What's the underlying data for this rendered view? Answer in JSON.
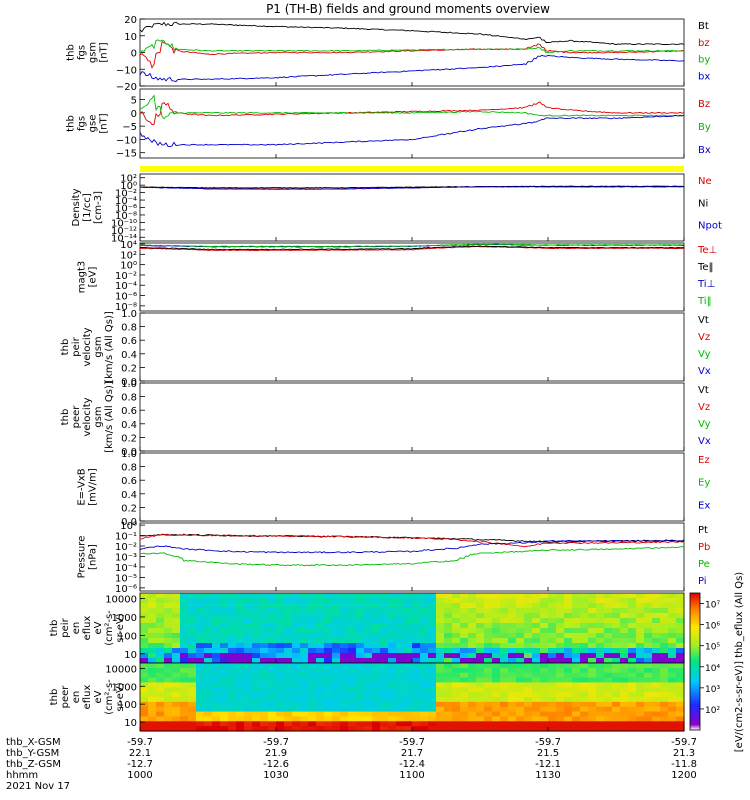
{
  "figure": {
    "title": "P1 (TH-B) fields and ground moments overview",
    "date": "2021 Nov 17"
  },
  "footer": {
    "labels": [
      "thb_X-GSM",
      "thb_Y-GSM",
      "thb_Z-GSM",
      "hhmm"
    ],
    "ticks": [
      {
        "time": "1000",
        "x": "-59.7",
        "y": "22.1",
        "z": "-12.7"
      },
      {
        "time": "1030",
        "x": "-59.7",
        "y": "21.9",
        "z": "-12.6"
      },
      {
        "time": "1100",
        "x": "-59.7",
        "y": "21.7",
        "z": "-12.4"
      },
      {
        "time": "1130",
        "x": "-59.7",
        "y": "21.5",
        "z": "-12.1"
      },
      {
        "time": "1200",
        "x": "-59.7",
        "y": "21.3",
        "z": "-11.8"
      }
    ]
  },
  "colorbar": {
    "label": "[eV/(cm2-s-sr-eV)] thb_eflux (All Qs)",
    "ticks": [
      "10²",
      "10³",
      "10⁴",
      "10⁵",
      "10⁶",
      "10⁷"
    ]
  },
  "chart_data": [
    {
      "type": "line",
      "id": "fgs_gsm",
      "ylabel": [
        "thb",
        "fgs",
        "gsm",
        "[nT]"
      ],
      "ylim": [
        -20,
        20
      ],
      "yticks": [
        "20",
        "10",
        "0",
        "−10",
        "−20"
      ],
      "legend": [
        {
          "text": "Bt",
          "color": "#000000"
        },
        {
          "text": "bz",
          "color": "#dd0000"
        },
        {
          "text": "by",
          "color": "#00bb00"
        },
        {
          "text": "bx",
          "color": "#0000cc"
        }
      ],
      "x": [
        1000,
        1003,
        1005,
        1008,
        1015,
        1030,
        1045,
        1100,
        1115,
        1125,
        1128,
        1130,
        1135,
        1145,
        1200
      ],
      "series": [
        {
          "name": "Bt",
          "color": "#000000",
          "values": [
            13,
            16,
            17,
            17,
            17,
            15.5,
            14.5,
            13,
            11,
            8,
            9,
            6,
            7,
            5,
            5
          ]
        },
        {
          "name": "bz",
          "color": "#dd0000",
          "values": [
            0,
            -8,
            7,
            1,
            -1,
            0,
            0,
            1,
            2,
            2,
            5,
            1,
            0,
            0,
            1
          ]
        },
        {
          "name": "by",
          "color": "#00bb00",
          "values": [
            0,
            4,
            8,
            2,
            1,
            1,
            1,
            1.5,
            2,
            2,
            3,
            0,
            1,
            1,
            1
          ]
        },
        {
          "name": "bx",
          "color": "#0000cc",
          "values": [
            -12,
            -15,
            -16,
            -16,
            -16,
            -15,
            -13,
            -11,
            -9,
            -7,
            -2,
            -2,
            -3,
            -4,
            -5
          ]
        }
      ]
    },
    {
      "type": "line",
      "id": "fgs_gse",
      "ylabel": [
        "thb",
        "fgs",
        "gse",
        "[nT]"
      ],
      "ylim": [
        -17,
        9
      ],
      "yticks": [
        "5",
        "0",
        "−5",
        "−10",
        "−15"
      ],
      "legend": [
        {
          "text": "Bz",
          "color": "#dd0000"
        },
        {
          "text": "By",
          "color": "#00bb00"
        },
        {
          "text": "Bx",
          "color": "#0000cc"
        }
      ],
      "x": [
        1000,
        1003,
        1005,
        1008,
        1015,
        1030,
        1045,
        1100,
        1115,
        1125,
        1128,
        1130,
        1135,
        1145,
        1200
      ],
      "series": [
        {
          "name": "Bz",
          "color": "#dd0000",
          "values": [
            0,
            -5,
            4,
            0,
            -1,
            -0.5,
            0,
            0.5,
            1,
            2,
            4,
            2,
            1,
            0,
            0
          ]
        },
        {
          "name": "By",
          "color": "#00bb00",
          "values": [
            1,
            6,
            -2,
            0,
            0,
            0,
            0,
            0,
            0.5,
            0,
            -1,
            -1,
            -1,
            -1,
            -1
          ]
        },
        {
          "name": "Bx",
          "color": "#0000cc",
          "values": [
            -8,
            -11,
            -12,
            -12,
            -12,
            -12,
            -11,
            -10,
            -6,
            -4,
            -3,
            -2,
            -2,
            -2,
            -1
          ]
        }
      ]
    },
    {
      "type": "line",
      "id": "density",
      "ylabel": [
        "Density",
        "[1/cc]",
        "[cm-3]"
      ],
      "yscale": "log",
      "yticks": [
        "10²",
        "10⁰",
        "10⁻²",
        "10⁻⁴",
        "10⁻⁶",
        "10⁻⁸",
        "10⁻¹⁰",
        "10⁻¹²",
        "10⁻¹⁴"
      ],
      "legend": [
        {
          "text": "Ne",
          "color": "#dd0000"
        },
        {
          "text": "Ni",
          "color": "#000000"
        },
        {
          "text": "Npot",
          "color": "#0000cc"
        }
      ],
      "x": [
        1000,
        1015,
        1030,
        1045,
        1100,
        1115,
        1130,
        1145,
        1200
      ],
      "series": [
        {
          "name": "Ne",
          "color": "#dd0000",
          "values": [
            0.3,
            0.12,
            0.1,
            0.1,
            0.2,
            0.4,
            0.4,
            0.4,
            0.4
          ]
        },
        {
          "name": "Ni",
          "color": "#000000",
          "values": [
            0.3,
            0.2,
            0.2,
            0.2,
            0.3,
            0.4,
            0.5,
            0.5,
            0.5
          ]
        },
        {
          "name": "Npot",
          "color": "#0000cc",
          "values": [
            0.25,
            0.1,
            0.08,
            0.09,
            0.18,
            0.35,
            0.35,
            0.35,
            0.35
          ]
        }
      ]
    },
    {
      "type": "line",
      "id": "temperature",
      "ylabel": [
        "magt3",
        "[eV]"
      ],
      "yscale": "log",
      "yticks": [
        "10⁴",
        "10²",
        "10⁰",
        "10⁻²",
        "10⁻⁴",
        "10⁻⁶",
        "10⁻⁸"
      ],
      "legend": [
        {
          "text": "Te⊥",
          "color": "#dd0000"
        },
        {
          "text": "Te‖",
          "color": "#000000"
        },
        {
          "text": "Ti⊥",
          "color": "#0000cc"
        },
        {
          "text": "Ti‖",
          "color": "#00bb00"
        }
      ],
      "x": [
        1000,
        1015,
        1030,
        1045,
        1100,
        1115,
        1130,
        1145,
        1200
      ],
      "series": [
        {
          "name": "Te⊥",
          "color": "#dd0000",
          "values": [
            1500,
            600,
            600,
            700,
            800,
            3000,
            1500,
            1500,
            1500
          ]
        },
        {
          "name": "Te‖",
          "color": "#000000",
          "values": [
            2000,
            900,
            900,
            1000,
            1200,
            4000,
            2000,
            2000,
            2000
          ]
        },
        {
          "name": "Ti⊥",
          "color": "#0000cc",
          "values": [
            5000,
            3000,
            3000,
            3000,
            3500,
            8000,
            6000,
            6000,
            6000
          ]
        },
        {
          "name": "Ti‖",
          "color": "#00bb00",
          "values": [
            6000,
            3500,
            3500,
            3500,
            4000,
            9000,
            7000,
            7000,
            7000
          ]
        }
      ]
    },
    {
      "type": "line",
      "id": "ion_velocity",
      "ylabel": [
        "thb",
        "peir",
        "velocity",
        "gsm",
        "[km/s (All Qs)]"
      ],
      "ylim": [
        0,
        1
      ],
      "yticks": [
        "1.0",
        "0.8",
        "0.6",
        "0.4",
        "0.2",
        "0.0"
      ],
      "legend": [
        {
          "text": "Vt",
          "color": "#000000"
        },
        {
          "text": "Vz",
          "color": "#dd0000"
        },
        {
          "text": "Vy",
          "color": "#00bb00"
        },
        {
          "text": "Vx",
          "color": "#0000cc"
        }
      ],
      "series": []
    },
    {
      "type": "line",
      "id": "electron_velocity",
      "ylabel": [
        "thb",
        "peer",
        "velocity",
        "gsm",
        "[km/s (All Qs)]"
      ],
      "ylim": [
        0,
        1
      ],
      "yticks": [
        "1.0",
        "0.8",
        "0.6",
        "0.4",
        "0.2",
        "0.0"
      ],
      "legend": [
        {
          "text": "Vt",
          "color": "#000000"
        },
        {
          "text": "Vz",
          "color": "#dd0000"
        },
        {
          "text": "Vy",
          "color": "#00bb00"
        },
        {
          "text": "Vx",
          "color": "#0000cc"
        }
      ],
      "series": []
    },
    {
      "type": "line",
      "id": "efield",
      "ylabel": [
        "E=-VxB",
        "[mV/m]"
      ],
      "ylim": [
        0,
        1
      ],
      "yticks": [
        "1.0",
        "0.8",
        "0.6",
        "0.4",
        "0.2",
        "0.0"
      ],
      "legend": [
        {
          "text": "Ez",
          "color": "#dd0000"
        },
        {
          "text": "Ey",
          "color": "#00bb00"
        },
        {
          "text": "Ex",
          "color": "#0000cc"
        }
      ],
      "series": []
    },
    {
      "type": "line",
      "id": "pressure",
      "ylabel": [
        "Pressure",
        "[nPa]"
      ],
      "yscale": "log",
      "yticks": [
        "10⁰",
        "10⁻¹",
        "10⁻²",
        "10⁻³",
        "10⁻⁴",
        "10⁻⁵",
        "10⁻⁶"
      ],
      "legend": [
        {
          "text": "Pt",
          "color": "#000000"
        },
        {
          "text": "Pb",
          "color": "#dd0000"
        },
        {
          "text": "Pe",
          "color": "#00bb00"
        },
        {
          "text": "Pi",
          "color": "#0000cc"
        }
      ],
      "x": [
        1000,
        1005,
        1010,
        1020,
        1030,
        1045,
        1100,
        1110,
        1115,
        1125,
        1130,
        1145,
        1200
      ],
      "series": [
        {
          "name": "Pt",
          "color": "#000000",
          "values": [
            0.1,
            0.12,
            0.12,
            0.1,
            0.09,
            0.08,
            0.06,
            0.05,
            0.04,
            0.03,
            0.025,
            0.03,
            0.035
          ]
        },
        {
          "name": "Pb",
          "color": "#dd0000",
          "values": [
            0.05,
            0.12,
            0.11,
            0.1,
            0.09,
            0.08,
            0.06,
            0.04,
            0.025,
            0.008,
            0.02,
            0.02,
            0.025
          ]
        },
        {
          "name": "Pe",
          "color": "#00bb00",
          "values": [
            0.002,
            0.002,
            0.0004,
            0.0002,
            0.00015,
            0.00015,
            0.0002,
            0.0004,
            0.002,
            0.003,
            0.004,
            0.005,
            0.008
          ]
        },
        {
          "name": "Pi",
          "color": "#0000cc",
          "values": [
            0.005,
            0.01,
            0.005,
            0.003,
            0.0025,
            0.0025,
            0.003,
            0.006,
            0.015,
            0.02,
            0.03,
            0.03,
            0.03
          ]
        }
      ]
    },
    {
      "type": "heatmap",
      "id": "ion_eflux",
      "ylabel": [
        "thb",
        "peir",
        "en",
        "eflux",
        "eV",
        "(cm²-s-",
        "sr-eV)"
      ],
      "yscale": "log",
      "yticks": [
        "10000",
        "1000",
        "100",
        "10"
      ],
      "color_scale": "log eflux 1e1 to 1e7 (rainbow)"
    },
    {
      "type": "heatmap",
      "id": "electron_eflux",
      "ylabel": [
        "thb",
        "peer",
        "en",
        "eflux",
        "eV",
        "(cm²-s-",
        "sr-eV)"
      ],
      "yscale": "log",
      "yticks": [
        "10000",
        "1000",
        "100",
        "10"
      ],
      "color_scale": "log eflux 1e1 to 1e7 (rainbow)"
    }
  ]
}
